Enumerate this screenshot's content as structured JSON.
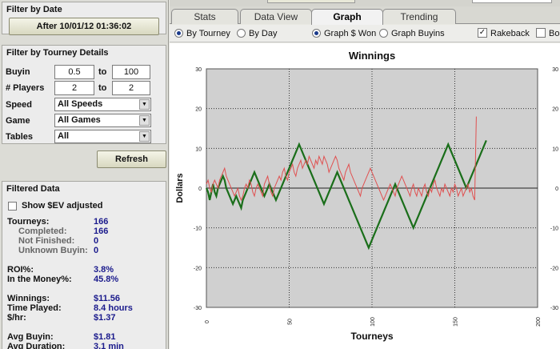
{
  "filter_date": {
    "title": "Filter by Date",
    "button": "After 10/01/12 01:36:02"
  },
  "filter_tourney": {
    "title": "Filter by Tourney Details",
    "buyin_label": "Buyin",
    "buyin_min": "0.5",
    "buyin_max": "100",
    "players_label": "# Players",
    "players_min": "2",
    "players_max": "2",
    "to": "to",
    "speed_label": "Speed",
    "speed_value": "All Speeds",
    "game_label": "Game",
    "game_value": "All Games",
    "tables_label": "Tables",
    "tables_value": "All"
  },
  "refresh_label": "Refresh",
  "filtered": {
    "title": "Filtered Data",
    "show_ev": "Show $EV adjusted",
    "rows": [
      {
        "label": "Tourneys:",
        "value": "166",
        "sub": false
      },
      {
        "label": "Completed:",
        "value": "166",
        "sub": true
      },
      {
        "label": "Not Finished:",
        "value": "0",
        "sub": true
      },
      {
        "label": "Unknown Buyin:",
        "value": "0",
        "sub": true
      },
      {
        "label": "ROI%:",
        "value": "3.8%",
        "sub": false
      },
      {
        "label": "In the Money%:",
        "value": "45.8%",
        "sub": false
      },
      {
        "label": "Winnings:",
        "value": "$11.56",
        "sub": false
      },
      {
        "label": "Time Played:",
        "value": "8.4 hours",
        "sub": false
      },
      {
        "label": "$/hr:",
        "value": "$1.37",
        "sub": false
      },
      {
        "label": "Avg Buyin:",
        "value": "$1.81",
        "sub": false
      },
      {
        "label": "Avg Duration:",
        "value": "3.1 min",
        "sub": false
      }
    ]
  },
  "tabs": [
    "Stats",
    "Data View",
    "Graph",
    "Trending"
  ],
  "active_tab": "Graph",
  "options": {
    "by_tourney": "By Tourney",
    "by_day": "By Day",
    "graph_won": "Graph $ Won",
    "graph_buyins": "Graph Buyins",
    "rakeback": "Rakeback",
    "bonus": "Bon"
  },
  "colors": {
    "winnings_line": "#1a6e1a",
    "ev_line": "#e05050",
    "plot_bg": "#d0d0d0"
  },
  "chart_data": {
    "type": "line",
    "title": "Winnings",
    "xlabel": "Tourneys",
    "ylabel": "Dollars",
    "xlim": [
      0,
      200
    ],
    "ylim": [
      -30,
      30
    ],
    "xticks": [
      "0",
      "50",
      "100",
      "150",
      "200"
    ],
    "yticks": [
      "30",
      "20",
      "10",
      "0",
      "-10",
      "-20",
      "-30"
    ],
    "grid": true,
    "series": [
      {
        "values": [
          0,
          -1,
          -3,
          -1,
          1,
          -1,
          -2,
          0,
          1,
          2,
          3,
          2,
          0,
          -1,
          -2,
          -3,
          -4,
          -3,
          -2,
          -3,
          -4,
          -5,
          -3,
          -2,
          -1,
          0,
          1,
          2,
          3,
          4,
          3,
          2,
          1,
          0,
          -1,
          -2,
          -1,
          0,
          1,
          0,
          -1,
          -2,
          -3,
          -2,
          -1,
          0,
          1,
          2,
          3,
          4,
          5,
          6,
          7,
          8,
          9,
          10,
          11,
          10,
          9,
          8,
          7,
          6,
          5,
          4,
          3,
          2,
          1,
          0,
          -1,
          -2,
          -3,
          -4,
          -3,
          -2,
          -1,
          0,
          1,
          2,
          3,
          4,
          3,
          2,
          1,
          0,
          -1,
          -2,
          -3,
          -4,
          -5,
          -6,
          -7,
          -8,
          -9,
          -10,
          -11,
          -12,
          -13,
          -14,
          -15,
          -14,
          -13,
          -12,
          -11,
          -10,
          -9,
          -8,
          -7,
          -6,
          -5,
          -4,
          -3,
          -2,
          -1,
          0,
          1,
          0,
          -1,
          -2,
          -3,
          -4,
          -5,
          -6,
          -7,
          -8,
          -9,
          -10,
          -9,
          -8,
          -7,
          -6,
          -5,
          -4,
          -3,
          -2,
          -1,
          0,
          1,
          2,
          3,
          4,
          5,
          6,
          7,
          8,
          9,
          10,
          11,
          10,
          9,
          8,
          7,
          6,
          5,
          4,
          3,
          2,
          1,
          0,
          1,
          2,
          3,
          4,
          5,
          6,
          7,
          8,
          9,
          10,
          11,
          12
        ]
      },
      {
        "values": [
          1,
          2,
          0,
          -1,
          1,
          2,
          1,
          0,
          2,
          3,
          4,
          5,
          3,
          2,
          1,
          0,
          -1,
          -2,
          -1,
          0,
          -2,
          -3,
          -2,
          0,
          1,
          0,
          2,
          1,
          -1,
          -2,
          0,
          1,
          0,
          -1,
          -2,
          1,
          2,
          3,
          1,
          -1,
          -2,
          0,
          1,
          2,
          3,
          2,
          4,
          5,
          3,
          2,
          4,
          5,
          6,
          4,
          3,
          5,
          6,
          7,
          5,
          6,
          7,
          6,
          8,
          7,
          6,
          5,
          7,
          6,
          8,
          7,
          6,
          8,
          7,
          6,
          4,
          5,
          6,
          7,
          8,
          7,
          5,
          4,
          3,
          2,
          4,
          5,
          6,
          4,
          3,
          2,
          1,
          0,
          -1,
          -2,
          0,
          1,
          2,
          3,
          4,
          5,
          4,
          3,
          2,
          1,
          0,
          -1,
          -2,
          -3,
          -2,
          -1,
          0,
          1,
          0,
          -1,
          -2,
          0,
          1,
          2,
          3,
          2,
          1,
          0,
          -1,
          -2,
          0,
          1,
          -1,
          -2,
          0,
          -1,
          -2,
          0,
          1,
          -1,
          -2,
          0,
          -1,
          1,
          2,
          0,
          -1,
          -2,
          0,
          -1,
          1,
          0,
          -1,
          -2,
          0,
          -1,
          1,
          0,
          -2,
          -1,
          0,
          -2,
          -1,
          0,
          1,
          -1,
          0,
          -2,
          -3,
          18
        ]
      }
    ]
  }
}
